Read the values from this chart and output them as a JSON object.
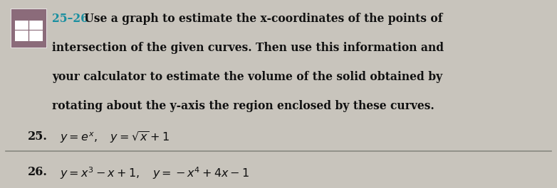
{
  "background_color": "#c8c4bc",
  "fig_width": 7.82,
  "fig_height": 2.65,
  "dpi": 100,
  "icon_bg_color": "#8b6b7a",
  "teal_color": "#1a8fa0",
  "black_color": "#111111",
  "gray_color": "#888880",
  "fs_body": 11.2,
  "fs_eq": 11.5,
  "line1_label": "25–26",
  "line1_rest": " Use a graph to estimate the x-coordinates of the points of",
  "line2": "intersection of the given curves. Then use this information and",
  "line3": "your calculator to estimate the volume of the solid obtained by",
  "line4": "rotating about the y-axis the region enclosed by these curves.",
  "p25_label": "25.",
  "p25_math": "$y = e^x, \\quad y = \\sqrt{x} + 1$",
  "p26_label": "26.",
  "p26_math": "$y = x^3 - x + 1, \\quad y = -x^4 + 4x - 1$"
}
